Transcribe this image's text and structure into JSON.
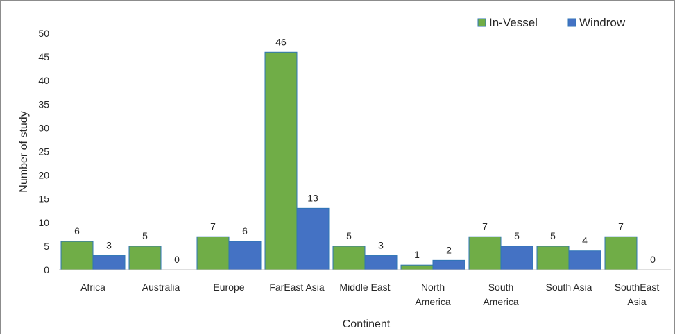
{
  "chart_data": {
    "type": "bar",
    "xlabel": "Continent",
    "ylabel": "Number of study",
    "ylim": [
      0,
      50
    ],
    "ytick_step": 5,
    "categories": [
      [
        "Africa"
      ],
      [
        "Australia"
      ],
      [
        "Europe"
      ],
      [
        "FarEast Asia"
      ],
      [
        "Middle East"
      ],
      [
        "North",
        "America"
      ],
      [
        "South",
        "America"
      ],
      [
        "South Asia"
      ],
      [
        "SouthEast",
        "Asia"
      ]
    ],
    "series": [
      {
        "name": "In-Vessel",
        "color": "#70ad47",
        "values": [
          6,
          5,
          7,
          46,
          5,
          1,
          7,
          5,
          7
        ]
      },
      {
        "name": "Windrow",
        "color": "#4472c4",
        "values": [
          3,
          0,
          6,
          13,
          3,
          2,
          5,
          4,
          0
        ]
      }
    ],
    "legend_position": "top-right",
    "grid": false,
    "bar_edge_color": "#2e75b6"
  }
}
